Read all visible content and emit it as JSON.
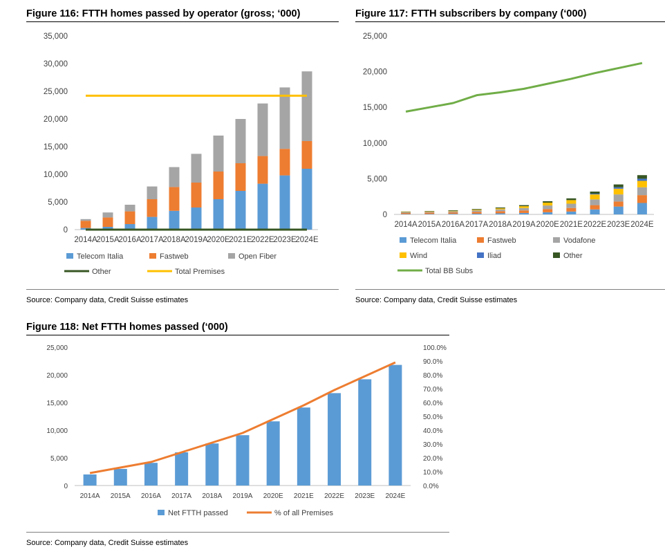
{
  "colors": {
    "telecom_italia": "#5b9bd5",
    "fastweb": "#ed7d31",
    "open_fiber": "#a5a5a5",
    "vodafone": "#a5a5a5",
    "wind": "#ffc000",
    "iliad": "#4472c4",
    "other": "#375623",
    "total_premises": "#ffc000",
    "total_bb_subs": "#70ad47",
    "net_ftth": "#5b9bd5",
    "pct_premises": "#ed7d31"
  },
  "figures": [
    {
      "title": "Figure 116: FTTH homes passed by operator (gross; ‘000)",
      "source": "Source: Company data, Credit Suisse estimates"
    },
    {
      "title": "Figure 117: FTTH subscribers by company (‘000)",
      "source": "Source: Company data, Credit Suisse estimates"
    },
    {
      "title": "Figure 118: Net FTTH homes passed (‘000)",
      "source": "Source: Company data, Credit Suisse estimates"
    }
  ],
  "chart_data": [
    {
      "type": "bar",
      "stacked": true,
      "categories": [
        "2014A",
        "2015A",
        "2016A",
        "2017A",
        "2018A",
        "2019A",
        "2020E",
        "2021E",
        "2022E",
        "2023E",
        "2024E"
      ],
      "ylim": [
        0,
        35000
      ],
      "yticks": [
        "0",
        "5,000",
        "10,000",
        "15,000",
        "20,000",
        "25,000",
        "30,000",
        "35,000"
      ],
      "grid": false,
      "legend": "bottom",
      "series": [
        {
          "name": "Telecom Italia",
          "type": "bar",
          "color_key": "telecom_italia",
          "values": [
            300,
            500,
            1000,
            2300,
            3400,
            4000,
            5500,
            7000,
            8300,
            9800,
            11000
          ]
        },
        {
          "name": "Fastweb",
          "type": "bar",
          "color_key": "fastweb",
          "values": [
            1300,
            1700,
            2300,
            3200,
            4300,
            4500,
            5000,
            5000,
            5000,
            4800,
            5000
          ]
        },
        {
          "name": "Open Fiber",
          "type": "bar",
          "color_key": "open_fiber",
          "values": [
            300,
            900,
            1200,
            2300,
            3600,
            5200,
            6500,
            8000,
            9500,
            11100,
            12600
          ]
        },
        {
          "name": "Other",
          "type": "line",
          "color_key": "other",
          "values": [
            0,
            0,
            0,
            0,
            0,
            0,
            0,
            0,
            0,
            0,
            0
          ]
        },
        {
          "name": "Total Premises",
          "type": "line",
          "color_key": "total_premises",
          "values": [
            24200,
            24200,
            24200,
            24200,
            24200,
            24200,
            24200,
            24200,
            24200,
            24200,
            24200
          ]
        }
      ]
    },
    {
      "type": "bar",
      "stacked": true,
      "categories": [
        "2014A",
        "2015A",
        "2016A",
        "2017A",
        "2018A",
        "2019A",
        "2020E",
        "2021E",
        "2022E",
        "2023E",
        "2024E"
      ],
      "ylim": [
        0,
        25000
      ],
      "yticks": [
        "0",
        "5,000",
        "10,000",
        "15,000",
        "20,000",
        "25,000"
      ],
      "grid": false,
      "legend": "bottom",
      "series": [
        {
          "name": "Telecom Italia",
          "type": "bar",
          "color_key": "telecom_italia",
          "values": [
            50,
            60,
            80,
            100,
            150,
            200,
            300,
            400,
            700,
            1100,
            1600
          ]
        },
        {
          "name": "Fastweb",
          "type": "bar",
          "color_key": "fastweb",
          "values": [
            150,
            180,
            200,
            250,
            300,
            350,
            450,
            500,
            600,
            700,
            1100
          ]
        },
        {
          "name": "Vodafone",
          "type": "bar",
          "color_key": "vodafone",
          "values": [
            100,
            120,
            150,
            200,
            250,
            350,
            500,
            600,
            800,
            1000,
            1100
          ]
        },
        {
          "name": "Wind",
          "type": "bar",
          "color_key": "wind",
          "values": [
            50,
            60,
            70,
            100,
            150,
            250,
            400,
            500,
            700,
            800,
            900
          ]
        },
        {
          "name": "Iliad",
          "type": "bar",
          "color_key": "iliad",
          "values": [
            0,
            0,
            0,
            0,
            0,
            0,
            0,
            0,
            100,
            200,
            300
          ]
        },
        {
          "name": "Other",
          "type": "bar",
          "color_key": "other",
          "values": [
            50,
            60,
            80,
            100,
            120,
            150,
            200,
            250,
            300,
            400,
            500
          ]
        },
        {
          "name": "Total BB Subs",
          "type": "line",
          "color_key": "total_bb_subs",
          "values": [
            14400,
            15000,
            15600,
            16700,
            17100,
            17600,
            18300,
            19000,
            19800,
            20500,
            21200
          ]
        }
      ]
    },
    {
      "type": "bar",
      "categories": [
        "2014A",
        "2015A",
        "2016A",
        "2017A",
        "2018A",
        "2019A",
        "2020E",
        "2021E",
        "2022E",
        "2023E",
        "2024E"
      ],
      "ylim": [
        0,
        25000
      ],
      "yticks": [
        "0",
        "5,000",
        "10,000",
        "15,000",
        "20,000",
        "25,000"
      ],
      "y2lim": [
        0,
        100
      ],
      "y2ticks": [
        "0.0%",
        "10.0%",
        "20.0%",
        "30.0%",
        "40.0%",
        "50.0%",
        "60.0%",
        "70.0%",
        "80.0%",
        "90.0%",
        "100.0%"
      ],
      "grid": false,
      "legend": "bottom",
      "series": [
        {
          "name": "Net FTTH passed",
          "type": "bar",
          "axis": "left",
          "color_key": "net_ftth",
          "values": [
            2000,
            3000,
            4100,
            6000,
            7600,
            9100,
            11600,
            14100,
            16700,
            19200,
            21800
          ]
        },
        {
          "name": "% of all Premises",
          "type": "line",
          "axis": "right",
          "color_key": "pct_premises",
          "values": [
            9,
            13,
            17,
            24,
            31,
            38,
            48,
            58,
            69,
            79,
            89
          ]
        }
      ]
    }
  ]
}
